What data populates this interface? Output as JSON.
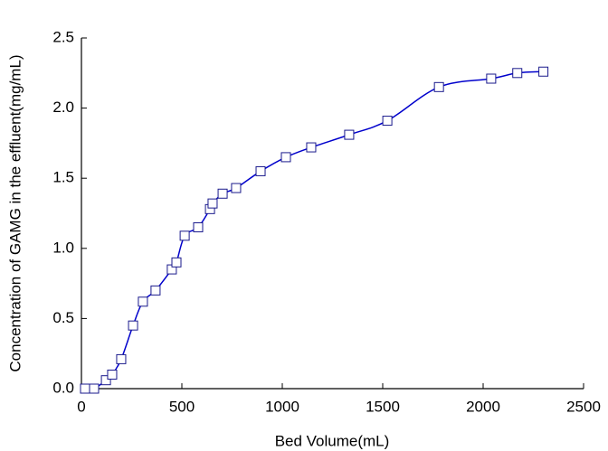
{
  "chart_data": {
    "type": "line",
    "x_label": "Bed Volume(mL)",
    "y_label": "Concentration of GAMG in the effluent(mg/mL)",
    "x": [
      18,
      63,
      122,
      153,
      198,
      257,
      306,
      369,
      450,
      473,
      514,
      581,
      640,
      653,
      703,
      770,
      892,
      1018,
      1144,
      1333,
      1523,
      1780,
      2040,
      2170,
      2300
    ],
    "series": [
      {
        "color": "#0000cc",
        "marker_color": "#1a1a8c",
        "values": [
          0,
          0,
          0.06,
          0.1,
          0.21,
          0.45,
          0.62,
          0.7,
          0.85,
          0.9,
          1.09,
          1.15,
          1.28,
          1.32,
          1.39,
          1.43,
          1.55,
          1.65,
          1.72,
          1.81,
          1.91,
          2.15,
          2.21,
          2.25,
          2.26
        ]
      }
    ],
    "xlim": [
      0,
      2500
    ],
    "xticks": [
      0,
      500,
      1000,
      1500,
      2000,
      2500
    ],
    "ylim": [
      0,
      2.5
    ],
    "yticks": [
      {
        "value": 0,
        "label": "0.0"
      },
      0.5,
      {
        "value": 1,
        "label": "1.0"
      },
      1.5,
      {
        "value": 2,
        "label": "2.0"
      },
      2.5
    ],
    "smooth": true
  }
}
